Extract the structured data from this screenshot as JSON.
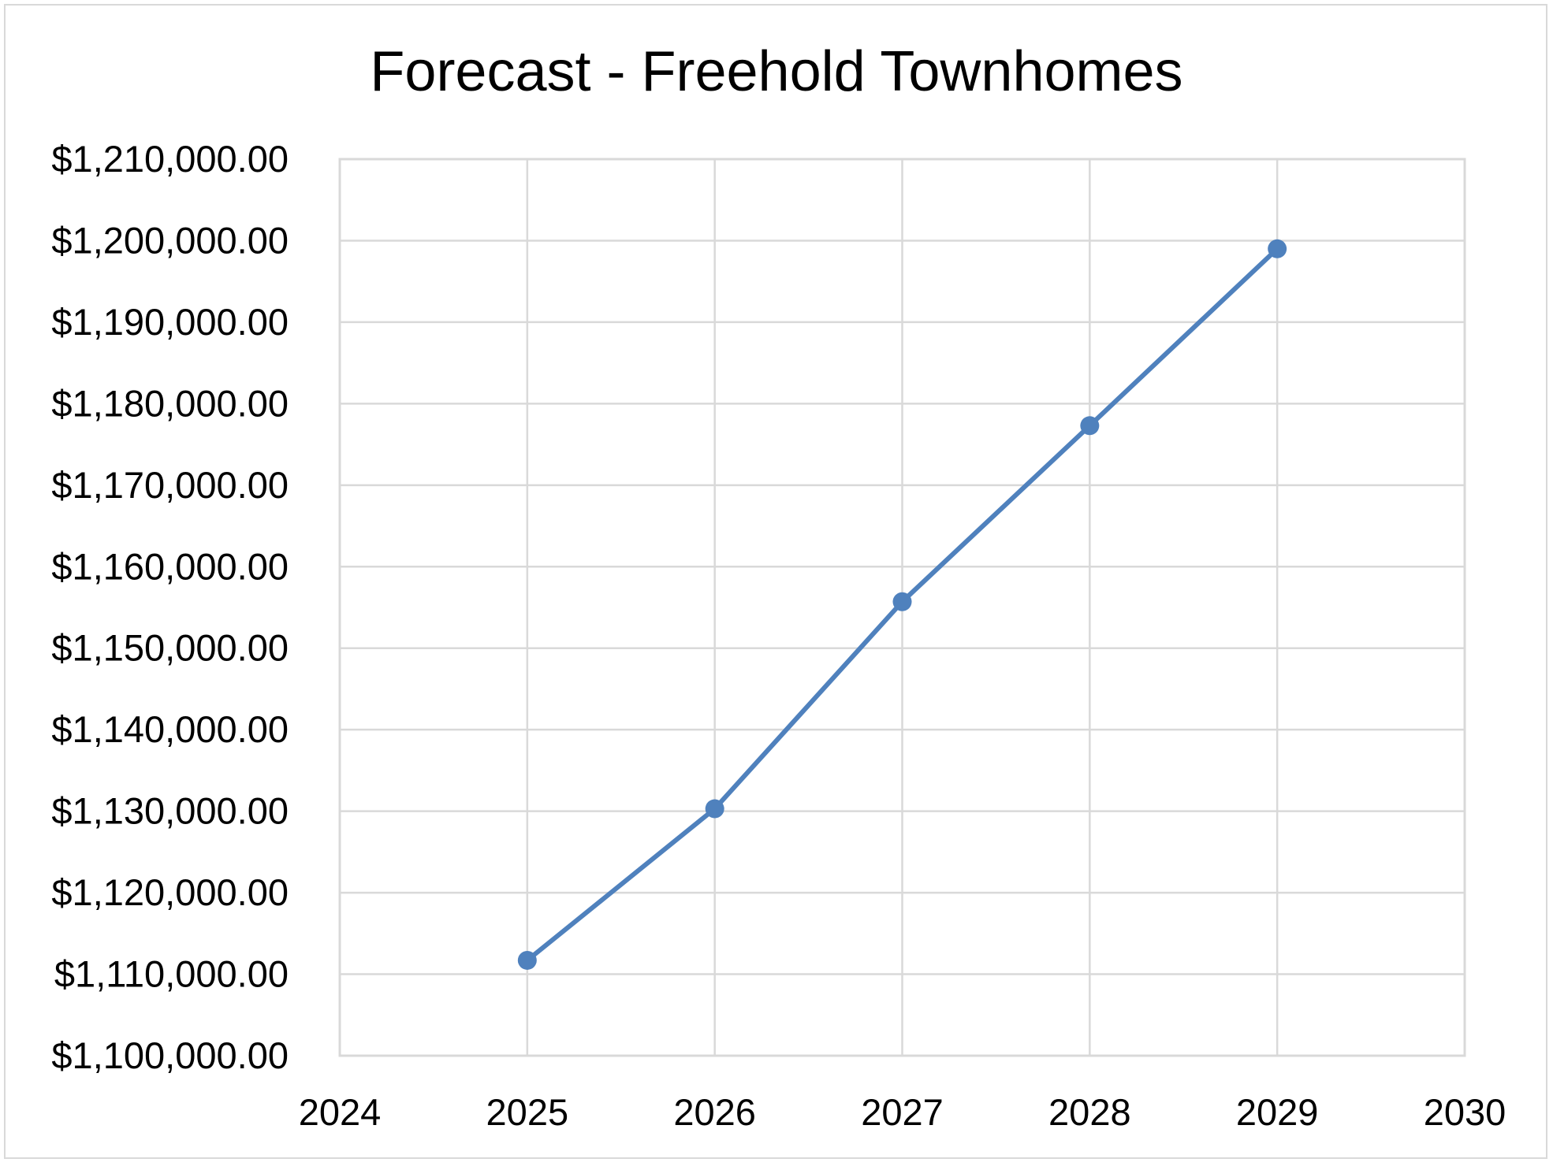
{
  "chart_data": {
    "type": "line",
    "title": "Forecast - Freehold Townhomes",
    "xlabel": "",
    "ylabel": "",
    "xlim": [
      2024,
      2030
    ],
    "ylim": [
      1100000,
      1210000
    ],
    "x_ticks": [
      2024,
      2025,
      2026,
      2027,
      2028,
      2029,
      2030
    ],
    "x_tick_labels": [
      "2024",
      "2025",
      "2026",
      "2027",
      "2028",
      "2029",
      "2030"
    ],
    "y_ticks": [
      1100000,
      1110000,
      1120000,
      1130000,
      1140000,
      1150000,
      1160000,
      1170000,
      1180000,
      1190000,
      1200000,
      1210000
    ],
    "y_tick_labels": [
      "$1,100,000.00",
      "$1,110,000.00",
      "$1,120,000.00",
      "$1,130,000.00",
      "$1,140,000.00",
      "$1,150,000.00",
      "$1,160,000.00",
      "$1,170,000.00",
      "$1,180,000.00",
      "$1,190,000.00",
      "$1,200,000.00",
      "$1,210,000.00"
    ],
    "grid": true,
    "legend": "none",
    "series": [
      {
        "color": "#4f81bd",
        "marker": "circle",
        "x": [
          2025,
          2026,
          2027,
          2028,
          2029
        ],
        "y": [
          1111700,
          1130300,
          1155700,
          1177300,
          1199000
        ]
      }
    ]
  }
}
